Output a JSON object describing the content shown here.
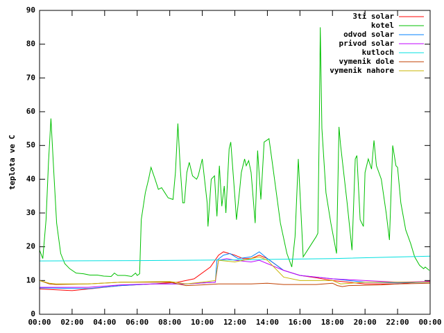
{
  "chart_data": {
    "type": "line",
    "y_label": "teplota ve C",
    "xlim": [
      0,
      24
    ],
    "ylim": [
      0,
      90
    ],
    "xticks": [
      {
        "value": 0,
        "label": "00:00"
      },
      {
        "value": 2,
        "label": "02:00"
      },
      {
        "value": 4,
        "label": "04:00"
      },
      {
        "value": 6,
        "label": "06:00"
      },
      {
        "value": 8,
        "label": "08:00"
      },
      {
        "value": 10,
        "label": "10:00"
      },
      {
        "value": 12,
        "label": "12:00"
      },
      {
        "value": 14,
        "label": "14:00"
      },
      {
        "value": 16,
        "label": "16:00"
      },
      {
        "value": 18,
        "label": "18:00"
      },
      {
        "value": 20,
        "label": "20:00"
      },
      {
        "value": 22,
        "label": "22:00"
      },
      {
        "value": 24,
        "label": "00:00"
      }
    ],
    "yticks": [
      0,
      10,
      20,
      30,
      40,
      50,
      60,
      70,
      80,
      90
    ],
    "grid": false,
    "legend": "top-right",
    "series": [
      {
        "name": "3ti solar",
        "color": "#ff0000",
        "x": [
          0,
          2,
          3,
          5,
          7,
          8.5,
          9.5,
          10.5,
          11,
          11.3,
          12,
          12.5,
          13,
          13.5,
          14,
          15,
          16,
          17,
          18,
          19,
          20,
          22,
          24
        ],
        "values": [
          7.5,
          7,
          7.5,
          8.5,
          9,
          9.5,
          10.5,
          14,
          17.5,
          18.5,
          17.5,
          16.5,
          16.5,
          17.5,
          16.5,
          13,
          11.5,
          10.8,
          10,
          9.5,
          9,
          9,
          9.8
        ]
      },
      {
        "name": "kotel",
        "color": "#00c000",
        "x": [
          0,
          0.2,
          0.4,
          0.55,
          0.7,
          0.9,
          1.05,
          1.3,
          1.55,
          1.85,
          2.25,
          2.7,
          3.1,
          3.55,
          3.95,
          4.4,
          4.6,
          4.8,
          5.25,
          5.65,
          5.9,
          6.0,
          6.15,
          6.25,
          6.5,
          6.7,
          6.85,
          7.1,
          7.3,
          7.5,
          7.7,
          7.9,
          8.2,
          8.35,
          8.5,
          8.65,
          8.8,
          8.9,
          9.05,
          9.2,
          9.4,
          9.65,
          9.75,
          10.0,
          10.3,
          10.35,
          10.55,
          10.75,
          10.9,
          11.05,
          11.2,
          11.35,
          11.45,
          11.65,
          11.75,
          12.0,
          12.1,
          12.3,
          12.4,
          12.6,
          12.7,
          12.85,
          13.0,
          13.25,
          13.4,
          13.6,
          13.8,
          14.1,
          14.3,
          14.8,
          15.2,
          15.5,
          15.7,
          15.9,
          16.2,
          16.6,
          17.0,
          17.1,
          17.2,
          17.25,
          17.35,
          17.6,
          17.9,
          18.25,
          18.4,
          18.5,
          18.9,
          19.2,
          19.4,
          19.5,
          19.7,
          19.9,
          20.0,
          20.2,
          20.4,
          20.55,
          20.7,
          21.0,
          21.3,
          21.5,
          21.7,
          21.9,
          22.0,
          22.2,
          22.5,
          22.8,
          23.05,
          23.35,
          23.6,
          23.7,
          23.95
        ],
        "values": [
          19,
          16.5,
          28,
          45,
          58,
          40,
          27,
          18,
          15,
          13.5,
          12.2,
          12,
          11.6,
          11.6,
          11.3,
          11.2,
          12.2,
          11.5,
          11.5,
          11.2,
          12.2,
          11.5,
          12,
          28,
          36,
          40,
          43.5,
          40,
          37,
          37.5,
          36,
          34.5,
          34,
          42,
          56.5,
          43,
          33,
          33,
          42,
          45,
          41,
          40,
          41,
          46,
          33,
          26,
          40,
          41,
          29,
          44,
          32,
          38,
          30,
          49,
          51,
          35,
          28,
          37,
          42,
          46,
          44,
          45.5,
          42,
          27,
          48.5,
          34,
          51,
          52,
          45,
          27,
          18,
          14,
          23,
          46,
          17,
          20,
          23,
          24,
          60,
          85,
          55,
          36,
          27,
          18,
          55.5,
          50,
          33,
          19,
          46,
          47,
          28,
          26,
          42,
          46,
          43,
          51.5,
          44,
          40,
          30,
          22,
          50,
          44,
          43.5,
          33,
          25,
          21,
          17,
          14.5,
          13.5,
          14,
          13
        ]
      },
      {
        "name": "odvod solar",
        "color": "#0080ff",
        "x": [
          0,
          3,
          5,
          7,
          9,
          10.8,
          10.9,
          11.3,
          11.7,
          12.2,
          13,
          13.5,
          14,
          15,
          16,
          17,
          18,
          20,
          22,
          24
        ],
        "values": [
          7.8,
          7.6,
          8.5,
          9,
          9,
          9.5,
          16,
          17.5,
          18,
          16.5,
          17,
          18.5,
          16.5,
          13,
          11.5,
          11,
          10.5,
          9.5,
          9.3,
          9.5
        ]
      },
      {
        "name": "privod solar",
        "color": "#c000ff",
        "x": [
          0,
          3,
          5,
          7,
          9,
          10.8,
          11,
          11.5,
          12,
          13,
          13.5,
          14,
          15,
          16,
          18,
          20,
          22,
          24
        ],
        "values": [
          8,
          8,
          8.7,
          9,
          9,
          9.5,
          16,
          16.5,
          16,
          15.5,
          16,
          15,
          13,
          11.5,
          10.5,
          10,
          9.5,
          9.7
        ]
      },
      {
        "name": "kutloch",
        "color": "#00e0e0",
        "x": [
          0,
          6,
          12,
          18,
          24
        ],
        "values": [
          15.8,
          15.9,
          16.1,
          16.5,
          17.2
        ]
      },
      {
        "name": "vymenik dole",
        "color": "#c04000",
        "x": [
          0,
          0.6,
          1,
          3,
          5,
          8,
          9,
          10,
          11,
          12,
          13,
          14,
          15,
          17,
          18,
          18.3,
          18.6,
          19,
          21,
          22,
          24
        ],
        "values": [
          10,
          9,
          8.8,
          9,
          9.5,
          9.5,
          8.5,
          8.7,
          9,
          9,
          9,
          9.2,
          8.8,
          8.8,
          9.2,
          8.5,
          8.2,
          8.5,
          8.7,
          9,
          9.2
        ]
      },
      {
        "name": "vymenik nahore",
        "color": "#c8b400",
        "x": [
          0,
          0.6,
          1,
          3,
          5,
          8,
          9,
          10,
          10.8,
          11,
          12,
          13,
          13.5,
          14,
          15,
          16,
          17,
          18,
          18.5,
          20,
          22,
          24
        ],
        "values": [
          10,
          9.2,
          9,
          9,
          9.5,
          9.7,
          9,
          9.5,
          10,
          16,
          15.5,
          16.5,
          17,
          16,
          11,
          10,
          10,
          10,
          9,
          9.5,
          9.5,
          9.5
        ]
      }
    ]
  }
}
